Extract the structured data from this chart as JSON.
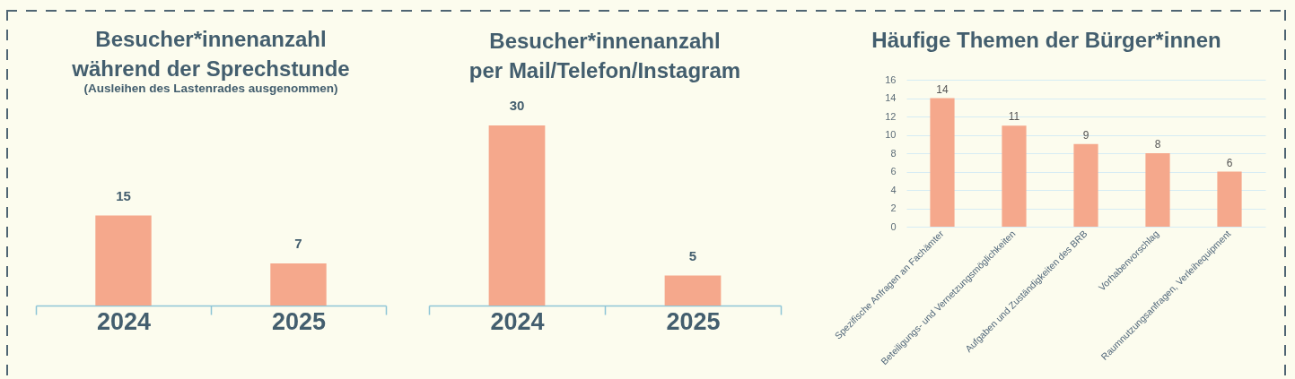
{
  "chart_data": [
    {
      "type": "bar",
      "title": "Besucher*innenanzahl\nwährend der Sprechstunde",
      "subtitle": "(Ausleihen des Lastenrades ausgenommen)",
      "categories": [
        "2024",
        "2025"
      ],
      "values": [
        15,
        7
      ],
      "color": "#f5a88c",
      "data_labels": true
    },
    {
      "type": "bar",
      "title": "Besucher*innenanzahl\nper Mail/Telefon/Instagram",
      "categories": [
        "2024",
        "2025"
      ],
      "values": [
        30,
        5
      ],
      "color": "#f5a88c",
      "data_labels": true
    },
    {
      "type": "bar",
      "title": "Häufige Themen der Bürger*innen",
      "categories": [
        "Spezifische Anfragen an Fachämter",
        "Beteiligungs- und Vernetzungsmöglichkeiten",
        "Aufgaben und Zuständigkeiten des BRB",
        "Vorhabenvorschlag",
        "Raumnutzungsanfragen, Verleihequipment"
      ],
      "values": [
        14,
        11,
        9,
        8,
        6
      ],
      "color": "#f5a88c",
      "ylim": [
        0,
        16
      ],
      "yticks": [
        0,
        2,
        4,
        6,
        8,
        10,
        12,
        14,
        16
      ],
      "grid": "y",
      "data_labels": true
    }
  ]
}
